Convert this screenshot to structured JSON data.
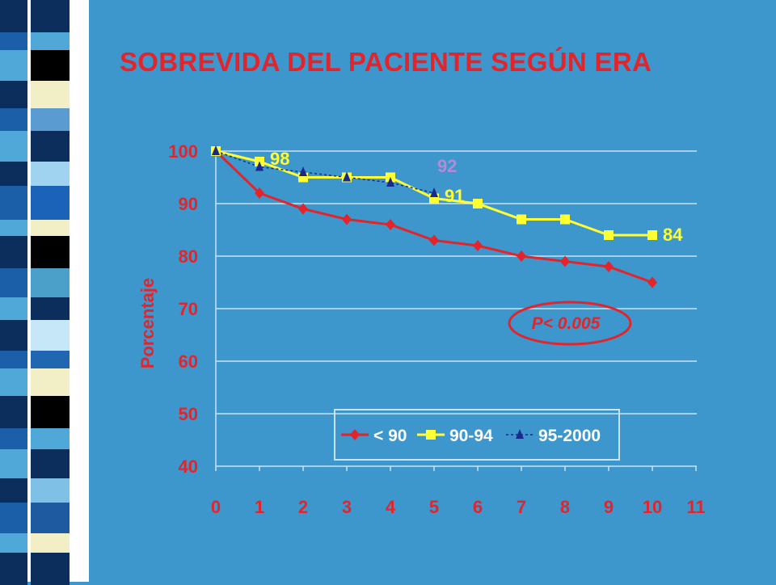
{
  "colors": {
    "background": "#3d97cc",
    "title": "#e3242b",
    "grid": "#c9e3f2",
    "series_lt90": "#e3242b",
    "series_9094": "#ffff33",
    "series_952000": "#1a2a8c",
    "label_9094": "#ffff33",
    "label_952000": "#b58ad6"
  },
  "chart_data": {
    "type": "line",
    "title": "SOBREVIDA DEL PACIENTE SEGÚN ERA",
    "xlabel": "",
    "ylabel": "Porcentaje",
    "xlim": [
      0,
      11
    ],
    "ylim": [
      40,
      100
    ],
    "x_ticks": [
      "0",
      "1",
      "2",
      "3",
      "4",
      "5",
      "6",
      "7",
      "8",
      "9",
      "10",
      "11"
    ],
    "y_ticks": [
      "100",
      "90",
      "80",
      "70",
      "60",
      "50",
      "40"
    ],
    "grid": true,
    "legend_position": "bottom-right",
    "series": [
      {
        "name": "< 90",
        "marker": "diamond",
        "x": [
          0,
          1,
          2,
          3,
          4,
          5,
          6,
          7,
          8,
          9,
          10
        ],
        "y": [
          100,
          92,
          89,
          87,
          86,
          83,
          82,
          80,
          79,
          78,
          75
        ]
      },
      {
        "name": "90-94",
        "marker": "square",
        "x": [
          0,
          1,
          2,
          3,
          4,
          5,
          6,
          7,
          8,
          9,
          10
        ],
        "y": [
          100,
          98,
          95,
          95,
          95,
          91,
          90,
          87,
          87,
          84,
          84
        ]
      },
      {
        "name": "95-2000",
        "marker": "triangle",
        "x": [
          0,
          1,
          2,
          3,
          4,
          5
        ],
        "y": [
          100,
          97,
          96,
          95,
          94,
          92
        ]
      }
    ],
    "data_labels": [
      "98",
      "92",
      "91",
      "84"
    ],
    "annotation": "P< 0.005"
  }
}
